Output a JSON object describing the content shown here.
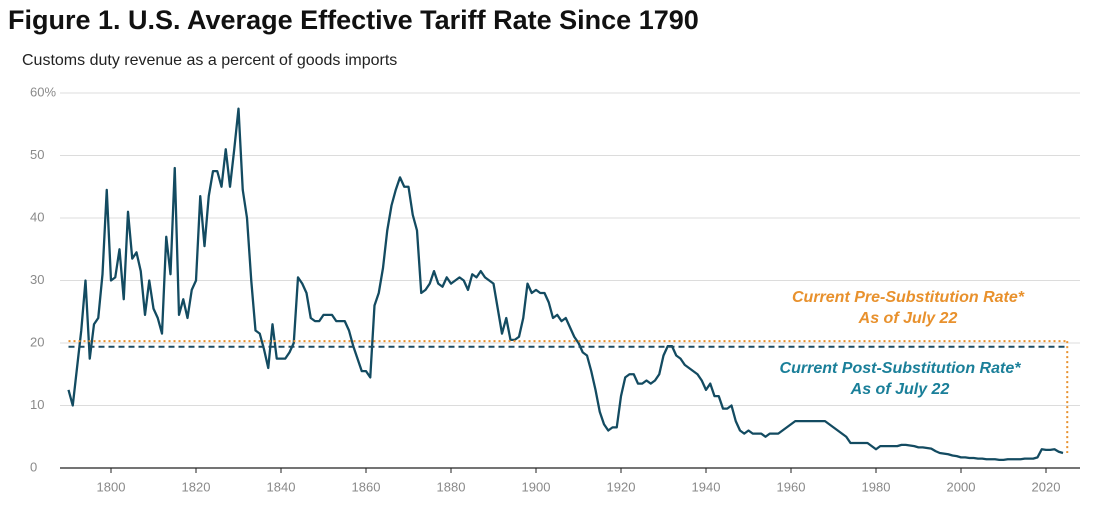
{
  "chart_data": {
    "type": "line",
    "title": "Figure 1. U.S. Average Effective Tariff Rate Since 1790",
    "subtitle": "Customs duty revenue as a percent of goods imports",
    "color": "#134b61",
    "x": [
      1790,
      1791,
      1792,
      1793,
      1794,
      1795,
      1796,
      1797,
      1798,
      1799,
      1800,
      1801,
      1802,
      1803,
      1804,
      1805,
      1806,
      1807,
      1808,
      1809,
      1810,
      1811,
      1812,
      1813,
      1814,
      1815,
      1816,
      1817,
      1818,
      1819,
      1820,
      1821,
      1822,
      1823,
      1824,
      1825,
      1826,
      1827,
      1828,
      1829,
      1830,
      1831,
      1832,
      1833,
      1834,
      1835,
      1836,
      1837,
      1838,
      1839,
      1840,
      1841,
      1842,
      1843,
      1844,
      1845,
      1846,
      1847,
      1848,
      1849,
      1850,
      1851,
      1852,
      1853,
      1854,
      1855,
      1856,
      1857,
      1858,
      1859,
      1860,
      1861,
      1862,
      1863,
      1864,
      1865,
      1866,
      1867,
      1868,
      1869,
      1870,
      1871,
      1872,
      1873,
      1874,
      1875,
      1876,
      1877,
      1878,
      1879,
      1880,
      1881,
      1882,
      1883,
      1884,
      1885,
      1886,
      1887,
      1888,
      1889,
      1890,
      1891,
      1892,
      1893,
      1894,
      1895,
      1896,
      1897,
      1898,
      1899,
      1900,
      1901,
      1902,
      1903,
      1904,
      1905,
      1906,
      1907,
      1908,
      1909,
      1910,
      1911,
      1912,
      1913,
      1914,
      1915,
      1916,
      1917,
      1918,
      1919,
      1920,
      1921,
      1922,
      1923,
      1924,
      1925,
      1926,
      1927,
      1928,
      1929,
      1930,
      1931,
      1932,
      1933,
      1934,
      1935,
      1936,
      1937,
      1938,
      1939,
      1940,
      1941,
      1942,
      1943,
      1944,
      1945,
      1946,
      1947,
      1948,
      1949,
      1950,
      1951,
      1952,
      1953,
      1954,
      1955,
      1956,
      1957,
      1958,
      1959,
      1960,
      1961,
      1962,
      1963,
      1964,
      1965,
      1966,
      1967,
      1968,
      1969,
      1970,
      1971,
      1972,
      1973,
      1974,
      1975,
      1976,
      1977,
      1978,
      1979,
      1980,
      1981,
      1982,
      1983,
      1984,
      1985,
      1986,
      1987,
      1988,
      1989,
      1990,
      1991,
      1992,
      1993,
      1994,
      1995,
      1996,
      1997,
      1998,
      1999,
      2000,
      2001,
      2002,
      2003,
      2004,
      2005,
      2006,
      2007,
      2008,
      2009,
      2010,
      2011,
      2012,
      2013,
      2014,
      2015,
      2016,
      2017,
      2018,
      2019,
      2020,
      2021,
      2022,
      2023,
      2024
    ],
    "values": [
      12.5,
      10,
      16,
      22,
      30,
      17.5,
      23,
      24,
      31,
      44.5,
      30,
      30.5,
      35,
      27,
      41,
      33.5,
      34.5,
      31.5,
      24.5,
      30,
      25.5,
      24,
      21.5,
      37,
      31,
      48,
      24.5,
      27,
      24,
      28.5,
      30,
      43.5,
      35.5,
      43.5,
      47.5,
      47.5,
      45,
      51,
      45,
      51,
      57.5,
      44.5,
      40,
      30,
      22,
      21.5,
      19,
      16,
      23,
      17.5,
      17.5,
      17.5,
      18.5,
      20,
      30.5,
      29.5,
      28,
      24,
      23.5,
      23.5,
      24.5,
      24.5,
      24.5,
      23.5,
      23.5,
      23.5,
      22,
      19.5,
      17.5,
      15.5,
      15.5,
      14.5,
      26,
      28,
      32,
      38,
      42,
      44.5,
      46.5,
      45,
      45,
      40.5,
      38,
      28,
      28.5,
      29.5,
      31.5,
      29.5,
      29,
      30.5,
      29.5,
      30,
      30.5,
      30,
      28.5,
      31,
      30.5,
      31.5,
      30.5,
      30,
      29.5,
      25.5,
      21.5,
      24,
      20.5,
      20.5,
      21,
      24,
      29.5,
      28,
      28.5,
      28,
      28,
      26.5,
      24,
      24.5,
      23.5,
      24,
      22.5,
      21,
      20,
      18.5,
      18,
      15.5,
      12.5,
      9,
      7,
      6,
      6.5,
      6.5,
      11.5,
      14.5,
      15,
      15,
      13.5,
      13.5,
      14,
      13.5,
      14,
      15,
      18,
      19.5,
      19.5,
      18,
      17.5,
      16.5,
      16,
      15.5,
      15,
      14,
      12.5,
      13.5,
      11.5,
      11.5,
      9.5,
      9.5,
      10,
      7.5,
      6,
      5.5,
      6,
      5.5,
      5.5,
      5.5,
      5,
      5.5,
      5.5,
      5.5,
      6,
      6.5,
      7,
      7.5,
      7.5,
      7.5,
      7.5,
      7.5,
      7.5,
      7.5,
      7.5,
      7,
      6.5,
      6,
      5.5,
      5,
      4,
      4,
      4,
      4,
      4,
      3.5,
      3,
      3.5,
      3.5,
      3.5,
      3.5,
      3.5,
      3.7,
      3.7,
      3.6,
      3.5,
      3.3,
      3.3,
      3.2,
      3.1,
      2.7,
      2.4,
      2.3,
      2.2,
      2,
      1.9,
      1.7,
      1.7,
      1.6,
      1.6,
      1.5,
      1.5,
      1.4,
      1.4,
      1.4,
      1.3,
      1.3,
      1.4,
      1.4,
      1.4,
      1.4,
      1.5,
      1.5,
      1.5,
      1.7,
      3,
      2.9,
      2.9,
      3,
      2.6,
      2.4
    ],
    "xlim": [
      1788,
      2028
    ],
    "xticks": [
      1800,
      1820,
      1840,
      1860,
      1880,
      1900,
      1920,
      1940,
      1960,
      1980,
      2000,
      2020
    ],
    "ylim": [
      0,
      60
    ],
    "yticks": [
      0,
      10,
      20,
      30,
      40,
      {
        "value": 60,
        "label": "60%"
      },
      50
    ],
    "grid": true,
    "reference_lines": [
      {
        "label": "Current Pre-Substitution Rate*",
        "sublabel": "As of July 22",
        "value": 20.3,
        "color": "#e8912d",
        "text_color": "#e8912d",
        "style": "dotted",
        "x_range": [
          1790,
          2025
        ]
      },
      {
        "label": "Current Post-Substitution Rate*",
        "sublabel": "As of July 22",
        "value": 19.4,
        "color": "#1a4b63",
        "text_color": "#1a7f99",
        "style": "dashed",
        "x_range": [
          1790,
          2025
        ]
      }
    ]
  }
}
